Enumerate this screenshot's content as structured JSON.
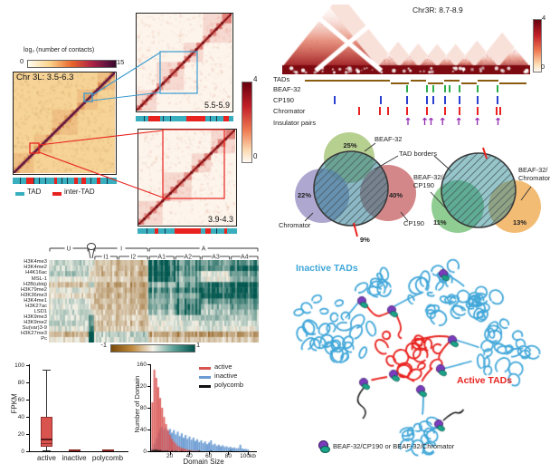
{
  "figure": {
    "hic": {
      "colorbar_label": "log₂ (number of contacts)",
      "colorbar_min": "0",
      "colorbar_max": "15",
      "region_label": "Chr 3L: 3.5-6.3",
      "inset_top_label": "5.5-5.9",
      "inset_bottom_label": "3.9-4.3",
      "inset_colorbar_max": "4",
      "inset_colorbar_min": "0",
      "legend": [
        {
          "label": "TAD",
          "color": "#38aebe"
        },
        {
          "label": "inter-TAD",
          "color": "#e8231f"
        }
      ],
      "tad_colors": {
        "t": "#38aebe",
        "r": "#e8231f",
        "k": "#16394a"
      },
      "tad_bar_main": [
        [
          "t",
          7
        ],
        [
          "k",
          1
        ],
        [
          "t",
          5
        ],
        [
          "r",
          7
        ],
        [
          "k",
          1
        ],
        [
          "t",
          4
        ],
        [
          "k",
          1
        ],
        [
          "t",
          5
        ],
        [
          "k",
          1
        ],
        [
          "t",
          8
        ],
        [
          "r",
          3
        ],
        [
          "t",
          4
        ],
        [
          "k",
          1
        ],
        [
          "t",
          4
        ],
        [
          "k",
          1
        ],
        [
          "t",
          6
        ],
        [
          "r",
          4
        ],
        [
          "t",
          3
        ],
        [
          "r",
          4
        ],
        [
          "t",
          5
        ],
        [
          "k",
          1
        ],
        [
          "t",
          5
        ],
        [
          "r",
          3
        ],
        [
          "t",
          6
        ],
        [
          "k",
          1
        ],
        [
          "t",
          9
        ]
      ],
      "tad_bar_inset_top": [
        [
          "t",
          8
        ],
        [
          "k",
          1
        ],
        [
          "t",
          4
        ],
        [
          "r",
          12
        ],
        [
          "t",
          3
        ],
        [
          "k",
          1
        ],
        [
          "t",
          6
        ],
        [
          "k",
          1
        ],
        [
          "t",
          16
        ],
        [
          "r",
          19
        ],
        [
          "t",
          5
        ],
        [
          "k",
          1
        ],
        [
          "t",
          5
        ],
        [
          "k",
          1
        ],
        [
          "t",
          7
        ],
        [
          "r",
          5
        ],
        [
          "t",
          5
        ]
      ],
      "tad_bar_inset_bottom": [
        [
          "t",
          9
        ],
        [
          "k",
          1
        ],
        [
          "t",
          7
        ],
        [
          "r",
          4
        ],
        [
          "t",
          6
        ],
        [
          "k",
          1
        ],
        [
          "t",
          9
        ],
        [
          "r",
          27
        ],
        [
          "t",
          4
        ],
        [
          "r",
          6
        ],
        [
          "t",
          5
        ],
        [
          "k",
          1
        ],
        [
          "t",
          7
        ],
        [
          "r",
          3
        ],
        [
          "t",
          10
        ]
      ]
    },
    "tri": {
      "title": "Chr3R: 8.7-8.9",
      "colorbar_max": "4",
      "colorbar_min": "0",
      "tad_segments": [
        [
          0,
          0.385
        ],
        [
          0.385,
          0.472
        ],
        [
          0.472,
          0.55
        ],
        [
          0.55,
          0.625
        ],
        [
          0.625,
          0.7
        ],
        [
          0.7,
          0.775
        ],
        [
          0.775,
          0.872
        ],
        [
          0.872,
          1
        ]
      ],
      "tracks": [
        {
          "label": "TADs",
          "color": "#8a5c10"
        },
        {
          "label": "BEAF-32",
          "color": "#2eae49",
          "ticks": [
            0.455,
            0.541,
            0.572,
            0.624,
            0.645,
            0.69,
            0.769,
            0.859
          ]
        },
        {
          "label": "CP190",
          "color": "#2b3fd0",
          "ticks": [
            0.131,
            0.338,
            0.455,
            0.541,
            0.572,
            0.624,
            0.69,
            0.769,
            0.859
          ]
        },
        {
          "label": "Chromator",
          "color": "#e82321",
          "ticks": [
            0.238,
            0.331,
            0.369,
            0.455,
            0.541,
            0.624,
            0.69,
            0.769,
            0.855,
            0.872
          ]
        },
        {
          "label": "Insulator pairs",
          "color": "#9328b0",
          "ticks": [
            0.459,
            0.534,
            0.562,
            0.614,
            0.686,
            0.769,
            0.862
          ]
        }
      ]
    },
    "venn": {
      "left": {
        "beaf_label": "BEAF-32",
        "beaf_pct": "25%",
        "chromator_label": "Chromator",
        "chromator_pct": "22%",
        "cp190_label": "CP190",
        "cp190_pct": "40%",
        "center_label": "TAD borders",
        "bottom_pct": "9%",
        "colors": {
          "beaf": "#a9c87d",
          "chromator": "#9a92c6",
          "cp190": "#c9696c"
        }
      },
      "right": {
        "left_line1": "BEAF-32/",
        "left_line2": "CP190",
        "left_pct": "11%",
        "right_line1": "BEAF-32/",
        "right_line2": "Chromator",
        "right_pct": "13%",
        "colors": {
          "cp190": "#7cc47f",
          "chromator": "#f2b566"
        }
      }
    },
    "histone": {
      "rows": [
        "H3K4me3",
        "H3K4me2",
        "H4K16ac",
        "MSL-1",
        "H2B(ubiq)",
        "H3K79me2",
        "H3K36me3",
        "H3K4me1",
        "H3K27ac",
        "LSD1",
        "H3K9me3",
        "H3K9me2",
        "Su(var)3-9",
        "H3K27me3",
        "Pc"
      ],
      "top_groups": [
        {
          "label": "U",
          "start": 0,
          "end": 0.19
        },
        {
          "label": "I",
          "start": 0.215,
          "end": 0.475
        },
        {
          "label": "A",
          "start": 0.475,
          "end": 1
        }
      ],
      "p_span": {
        "start": 0.19,
        "end": 0.215
      },
      "sub_groups": [
        {
          "label": "I1",
          "start": 0.215,
          "end": 0.33
        },
        {
          "label": "I2",
          "start": 0.33,
          "end": 0.475
        },
        {
          "label": "A1",
          "start": 0.475,
          "end": 0.6
        },
        {
          "label": "A2",
          "start": 0.6,
          "end": 0.725
        },
        {
          "label": "A3",
          "start": 0.725,
          "end": 0.865
        },
        {
          "label": "A4",
          "start": 0.865,
          "end": 1
        }
      ],
      "colorbar_min": "-1",
      "colorbar_max": "1",
      "values": [
        [
          0.15,
          0.1,
          -0.25,
          -0.3,
          0.95,
          0.65,
          0.45,
          0.6
        ],
        [
          0.15,
          0.0,
          -0.25,
          -0.3,
          0.9,
          0.75,
          0.5,
          0.85
        ],
        [
          0.2,
          -0.1,
          -0.3,
          -0.35,
          1.0,
          0.55,
          0.05,
          0.5
        ],
        [
          0.0,
          -0.1,
          -0.2,
          -0.25,
          1.0,
          0.45,
          0.0,
          0.35
        ],
        [
          -0.25,
          0.3,
          -0.4,
          -0.45,
          0.35,
          0.6,
          0.7,
          0.9
        ],
        [
          0.05,
          -0.1,
          -0.3,
          -0.35,
          0.6,
          0.85,
          0.75,
          0.9
        ],
        [
          -0.1,
          -0.2,
          -0.35,
          -0.4,
          0.45,
          0.5,
          0.9,
          0.9
        ],
        [
          0.1,
          -0.1,
          -0.3,
          -0.3,
          0.3,
          0.7,
          0.5,
          0.6
        ],
        [
          0.05,
          -0.1,
          -0.3,
          -0.3,
          0.4,
          0.8,
          0.3,
          0.5
        ],
        [
          0.1,
          0.0,
          -0.2,
          -0.25,
          0.25,
          0.8,
          0.2,
          0.3
        ],
        [
          0.1,
          0.45,
          -0.2,
          -0.2,
          0.05,
          0.2,
          0.3,
          0.2
        ],
        [
          0.15,
          0.5,
          -0.3,
          -0.3,
          0.05,
          0.1,
          0.15,
          0.1
        ],
        [
          0.05,
          0.6,
          -0.2,
          -0.2,
          0.0,
          0.05,
          0.05,
          0.0
        ],
        [
          -0.3,
          1.0,
          0.15,
          0.2,
          -0.45,
          -0.5,
          -0.5,
          -0.45
        ],
        [
          -0.1,
          1.0,
          0.1,
          0.1,
          -0.2,
          -0.25,
          -0.2,
          -0.2
        ]
      ]
    },
    "expression_box": {
      "type": "box",
      "ylabel": "FPKM",
      "yticks": [
        0,
        20,
        40,
        60,
        80,
        100
      ],
      "categories": [
        "active",
        "inactive",
        "polycomb"
      ],
      "stats": [
        {
          "whislo": 1,
          "q1": 5,
          "med": 15,
          "q3": 40,
          "whishi": 94
        },
        {
          "whislo": 0,
          "q1": 0,
          "med": 0.3,
          "q3": 0.8,
          "whishi": 2
        },
        {
          "whislo": 0,
          "q1": 0,
          "med": 0.2,
          "q3": 0.6,
          "whishi": 1.5
        }
      ],
      "box_color": "#d9534f"
    },
    "domain_size_hist": {
      "type": "histogram",
      "xlabel": "Domain Size",
      "ylabel": "Number of Domain",
      "yticks": [
        0,
        40,
        80,
        120,
        160
      ],
      "xticks_kb": [
        20,
        40,
        60,
        80,
        100
      ],
      "xtick_labels": [
        "20",
        "40",
        "60",
        "80",
        "100kb"
      ],
      "bin_kb": 2,
      "series": [
        {
          "name": "active",
          "color": "#d9534f",
          "values": [
            90,
            150,
            135,
            118,
            98,
            80,
            63,
            50,
            39,
            30,
            23,
            18,
            14,
            10,
            8,
            6,
            5,
            4,
            3,
            2,
            2,
            1,
            1,
            1,
            1,
            0,
            0,
            0,
            0,
            0,
            0,
            0,
            0,
            0,
            0,
            0,
            0,
            0,
            0,
            0,
            0,
            0,
            0,
            0,
            0,
            0,
            0,
            0,
            0,
            0
          ]
        },
        {
          "name": "inactive",
          "color": "#6b9bd2",
          "values": [
            5,
            14,
            24,
            34,
            42,
            45,
            40,
            43,
            37,
            41,
            34,
            39,
            31,
            36,
            28,
            33,
            25,
            30,
            23,
            27,
            21,
            25,
            19,
            22,
            17,
            20,
            15,
            18,
            13,
            16,
            20,
            12,
            14,
            10,
            12,
            9,
            11,
            8,
            9,
            7,
            8,
            6,
            7,
            5,
            6,
            12,
            5,
            4,
            4,
            3
          ]
        },
        {
          "name": "polycomb",
          "color": "#111111",
          "values": [
            2,
            3,
            3,
            2,
            2,
            1,
            1,
            1,
            1,
            0,
            1,
            0,
            1,
            0,
            0,
            1,
            0,
            0,
            0,
            1,
            0,
            0,
            0,
            0,
            1,
            0,
            0,
            0,
            0,
            0,
            1,
            0,
            0,
            0,
            0,
            0,
            0,
            0,
            0,
            0,
            1,
            0,
            0,
            0,
            0,
            0,
            0,
            0,
            0,
            0
          ]
        }
      ]
    },
    "cartoon": {
      "inactive_label": "Inactive TADs",
      "active_label": "Active TADs",
      "legend_text": "BEAF-32/CP190 or BEAF-32/Chromator",
      "inactive_color": "#41a7d9",
      "active_color": "#e8231f",
      "complex_purple": "#7a3cbd",
      "complex_teal": "#1aa489",
      "complexes": [
        [
          92,
          56
        ],
        [
          125,
          66
        ],
        [
          182,
          26
        ],
        [
          192,
          99
        ],
        [
          179,
          131
        ],
        [
          127,
          137
        ],
        [
          94,
          146
        ],
        [
          157,
          154
        ],
        [
          177,
          192
        ]
      ]
    }
  }
}
